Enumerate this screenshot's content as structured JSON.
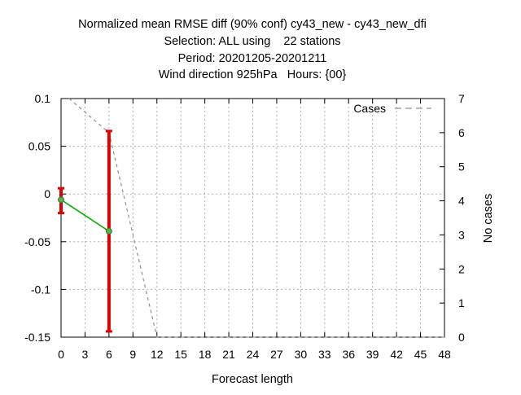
{
  "chart_data": {
    "type": "line",
    "title_lines": [
      "Normalized mean RMSE diff (90% conf) cy43_new - cy43_new_dfi",
      "Selection: ALL using    22 stations",
      "Period: 20201205-20201211",
      "Wind direction 925hPa   Hours: {00}"
    ],
    "xlabel": "Forecast length",
    "ylabel": "",
    "y2label": "No cases",
    "xlim": [
      0,
      48
    ],
    "ylim": [
      -0.15,
      0.1
    ],
    "y2lim": [
      0,
      7
    ],
    "x_ticks": [
      0,
      3,
      6,
      9,
      12,
      15,
      18,
      21,
      24,
      27,
      30,
      33,
      36,
      39,
      42,
      45,
      48
    ],
    "y_ticks": [
      -0.15,
      -0.1,
      -0.05,
      0,
      0.05,
      0.1
    ],
    "y_tick_labels": [
      "-0.15",
      "-0.1",
      "-0.05",
      "0",
      "0.05",
      "0.1"
    ],
    "y2_ticks": [
      0,
      1,
      2,
      3,
      4,
      5,
      6,
      7
    ],
    "grid": true,
    "legend_position": "top-right",
    "series": [
      {
        "name": "",
        "axis": "y",
        "color": "#00b000",
        "x": [
          0,
          6
        ],
        "y": [
          -0.006,
          -0.039
        ],
        "error_low": [
          -0.02,
          -0.144
        ],
        "error_high": [
          0.006,
          0.066
        ],
        "error_color": "#e00000"
      },
      {
        "name": "Cases",
        "axis": "y2",
        "style": "dashed",
        "color": "#909090",
        "x": [
          1,
          6,
          12,
          48
        ],
        "y": [
          7,
          6,
          0,
          0
        ]
      }
    ]
  }
}
